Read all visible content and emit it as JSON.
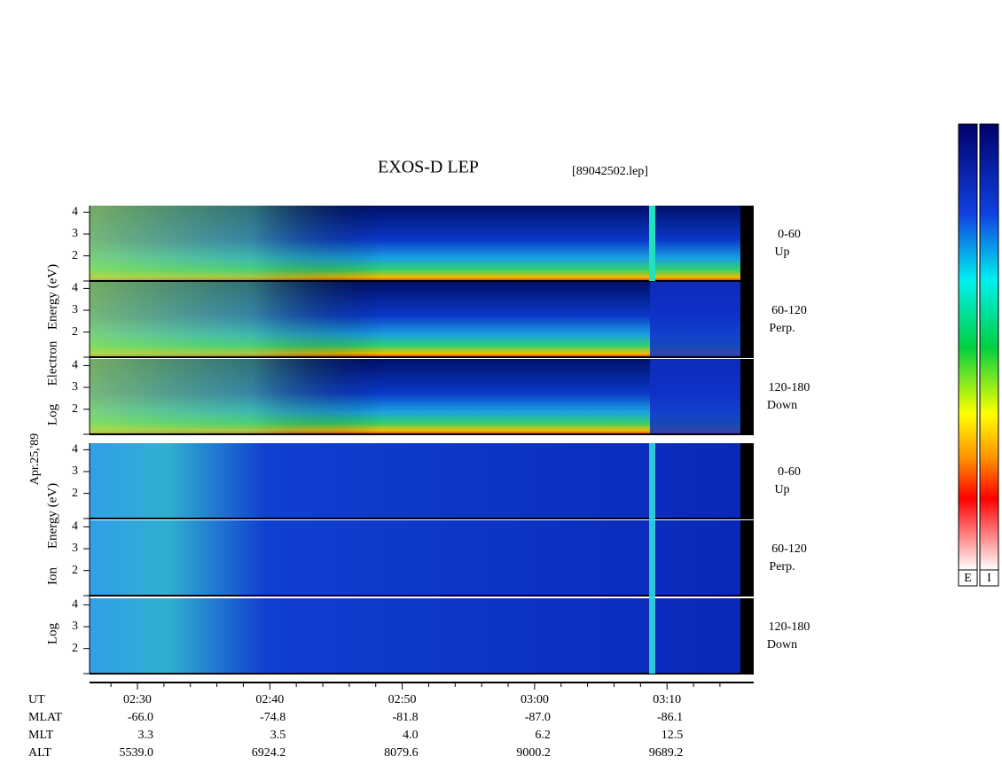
{
  "title": "EXOS-D LEP",
  "file": "[89042502.lep]",
  "date": "Apr.25,'89",
  "ylim": [
    0.85,
    4.3
  ],
  "yticks": [
    2,
    3,
    4
  ],
  "groups": [
    {
      "ylabel": [
        "Log",
        "Electron",
        "Energy (eV)"
      ],
      "panels": [
        {
          "range": "0-60",
          "dir": "Up"
        },
        {
          "range": "60-120",
          "dir": "Perp."
        },
        {
          "range": "120-180",
          "dir": "Down"
        }
      ]
    },
    {
      "ylabel": [
        "Log",
        "Ion",
        "Energy (eV)"
      ],
      "panels": [
        {
          "range": "0-60",
          "dir": "Up"
        },
        {
          "range": "60-120",
          "dir": "Perp."
        },
        {
          "range": "120-180",
          "dir": "Down"
        }
      ]
    }
  ],
  "orbit": [
    {
      "label": "UT",
      "values": [
        "02:30",
        "02:40",
        "02:50",
        "03:00",
        "03:10"
      ]
    },
    {
      "label": "MLAT",
      "values": [
        "-66.0",
        "-74.8",
        "-81.8",
        "-87.0",
        "-86.1"
      ]
    },
    {
      "label": "MLT",
      "values": [
        "3.3",
        "3.5",
        "4.0",
        "6.2",
        "12.5"
      ]
    },
    {
      "label": "ALT",
      "values": [
        "5539.0",
        "6924.2",
        "8079.6",
        "9000.2",
        "9689.2"
      ]
    }
  ],
  "colorbars": [
    "E",
    "I"
  ]
}
